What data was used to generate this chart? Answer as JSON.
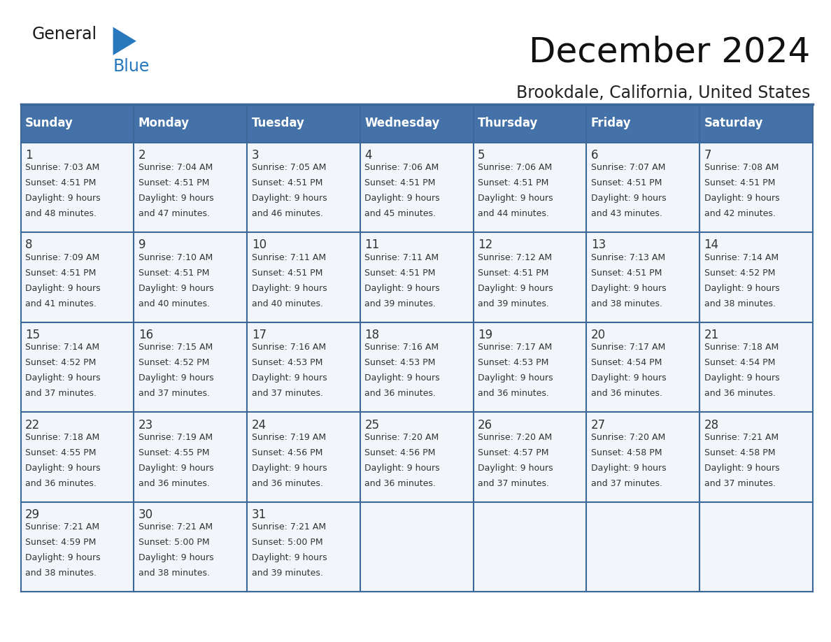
{
  "title": "December 2024",
  "subtitle": "Brookdale, California, United States",
  "header_bg": "#4472a8",
  "header_text_color": "#ffffff",
  "cell_bg": "#f2f5f9",
  "cell_bg_empty": "#f8f9fb",
  "border_color": "#3a6898",
  "text_color": "#333333",
  "day_names": [
    "Sunday",
    "Monday",
    "Tuesday",
    "Wednesday",
    "Thursday",
    "Friday",
    "Saturday"
  ],
  "days": [
    {
      "day": 1,
      "col": 0,
      "row": 0,
      "sunrise": "7:03 AM",
      "sunset": "4:51 PM",
      "dl_hours": 9,
      "dl_min": 48
    },
    {
      "day": 2,
      "col": 1,
      "row": 0,
      "sunrise": "7:04 AM",
      "sunset": "4:51 PM",
      "dl_hours": 9,
      "dl_min": 47
    },
    {
      "day": 3,
      "col": 2,
      "row": 0,
      "sunrise": "7:05 AM",
      "sunset": "4:51 PM",
      "dl_hours": 9,
      "dl_min": 46
    },
    {
      "day": 4,
      "col": 3,
      "row": 0,
      "sunrise": "7:06 AM",
      "sunset": "4:51 PM",
      "dl_hours": 9,
      "dl_min": 45
    },
    {
      "day": 5,
      "col": 4,
      "row": 0,
      "sunrise": "7:06 AM",
      "sunset": "4:51 PM",
      "dl_hours": 9,
      "dl_min": 44
    },
    {
      "day": 6,
      "col": 5,
      "row": 0,
      "sunrise": "7:07 AM",
      "sunset": "4:51 PM",
      "dl_hours": 9,
      "dl_min": 43
    },
    {
      "day": 7,
      "col": 6,
      "row": 0,
      "sunrise": "7:08 AM",
      "sunset": "4:51 PM",
      "dl_hours": 9,
      "dl_min": 42
    },
    {
      "day": 8,
      "col": 0,
      "row": 1,
      "sunrise": "7:09 AM",
      "sunset": "4:51 PM",
      "dl_hours": 9,
      "dl_min": 41
    },
    {
      "day": 9,
      "col": 1,
      "row": 1,
      "sunrise": "7:10 AM",
      "sunset": "4:51 PM",
      "dl_hours": 9,
      "dl_min": 40
    },
    {
      "day": 10,
      "col": 2,
      "row": 1,
      "sunrise": "7:11 AM",
      "sunset": "4:51 PM",
      "dl_hours": 9,
      "dl_min": 40
    },
    {
      "day": 11,
      "col": 3,
      "row": 1,
      "sunrise": "7:11 AM",
      "sunset": "4:51 PM",
      "dl_hours": 9,
      "dl_min": 39
    },
    {
      "day": 12,
      "col": 4,
      "row": 1,
      "sunrise": "7:12 AM",
      "sunset": "4:51 PM",
      "dl_hours": 9,
      "dl_min": 39
    },
    {
      "day": 13,
      "col": 5,
      "row": 1,
      "sunrise": "7:13 AM",
      "sunset": "4:51 PM",
      "dl_hours": 9,
      "dl_min": 38
    },
    {
      "day": 14,
      "col": 6,
      "row": 1,
      "sunrise": "7:14 AM",
      "sunset": "4:52 PM",
      "dl_hours": 9,
      "dl_min": 38
    },
    {
      "day": 15,
      "col": 0,
      "row": 2,
      "sunrise": "7:14 AM",
      "sunset": "4:52 PM",
      "dl_hours": 9,
      "dl_min": 37
    },
    {
      "day": 16,
      "col": 1,
      "row": 2,
      "sunrise": "7:15 AM",
      "sunset": "4:52 PM",
      "dl_hours": 9,
      "dl_min": 37
    },
    {
      "day": 17,
      "col": 2,
      "row": 2,
      "sunrise": "7:16 AM",
      "sunset": "4:53 PM",
      "dl_hours": 9,
      "dl_min": 37
    },
    {
      "day": 18,
      "col": 3,
      "row": 2,
      "sunrise": "7:16 AM",
      "sunset": "4:53 PM",
      "dl_hours": 9,
      "dl_min": 36
    },
    {
      "day": 19,
      "col": 4,
      "row": 2,
      "sunrise": "7:17 AM",
      "sunset": "4:53 PM",
      "dl_hours": 9,
      "dl_min": 36
    },
    {
      "day": 20,
      "col": 5,
      "row": 2,
      "sunrise": "7:17 AM",
      "sunset": "4:54 PM",
      "dl_hours": 9,
      "dl_min": 36
    },
    {
      "day": 21,
      "col": 6,
      "row": 2,
      "sunrise": "7:18 AM",
      "sunset": "4:54 PM",
      "dl_hours": 9,
      "dl_min": 36
    },
    {
      "day": 22,
      "col": 0,
      "row": 3,
      "sunrise": "7:18 AM",
      "sunset": "4:55 PM",
      "dl_hours": 9,
      "dl_min": 36
    },
    {
      "day": 23,
      "col": 1,
      "row": 3,
      "sunrise": "7:19 AM",
      "sunset": "4:55 PM",
      "dl_hours": 9,
      "dl_min": 36
    },
    {
      "day": 24,
      "col": 2,
      "row": 3,
      "sunrise": "7:19 AM",
      "sunset": "4:56 PM",
      "dl_hours": 9,
      "dl_min": 36
    },
    {
      "day": 25,
      "col": 3,
      "row": 3,
      "sunrise": "7:20 AM",
      "sunset": "4:56 PM",
      "dl_hours": 9,
      "dl_min": 36
    },
    {
      "day": 26,
      "col": 4,
      "row": 3,
      "sunrise": "7:20 AM",
      "sunset": "4:57 PM",
      "dl_hours": 9,
      "dl_min": 37
    },
    {
      "day": 27,
      "col": 5,
      "row": 3,
      "sunrise": "7:20 AM",
      "sunset": "4:58 PM",
      "dl_hours": 9,
      "dl_min": 37
    },
    {
      "day": 28,
      "col": 6,
      "row": 3,
      "sunrise": "7:21 AM",
      "sunset": "4:58 PM",
      "dl_hours": 9,
      "dl_min": 37
    },
    {
      "day": 29,
      "col": 0,
      "row": 4,
      "sunrise": "7:21 AM",
      "sunset": "4:59 PM",
      "dl_hours": 9,
      "dl_min": 38
    },
    {
      "day": 30,
      "col": 1,
      "row": 4,
      "sunrise": "7:21 AM",
      "sunset": "5:00 PM",
      "dl_hours": 9,
      "dl_min": 38
    },
    {
      "day": 31,
      "col": 2,
      "row": 4,
      "sunrise": "7:21 AM",
      "sunset": "5:00 PM",
      "dl_hours": 9,
      "dl_min": 39
    }
  ],
  "logo_color_general": "#1a1a1a",
  "logo_color_blue": "#2878be",
  "logo_triangle_color": "#2878be",
  "title_fontsize": 36,
  "subtitle_fontsize": 17,
  "header_fontsize": 12,
  "day_num_fontsize": 12,
  "cell_text_fontsize": 9
}
